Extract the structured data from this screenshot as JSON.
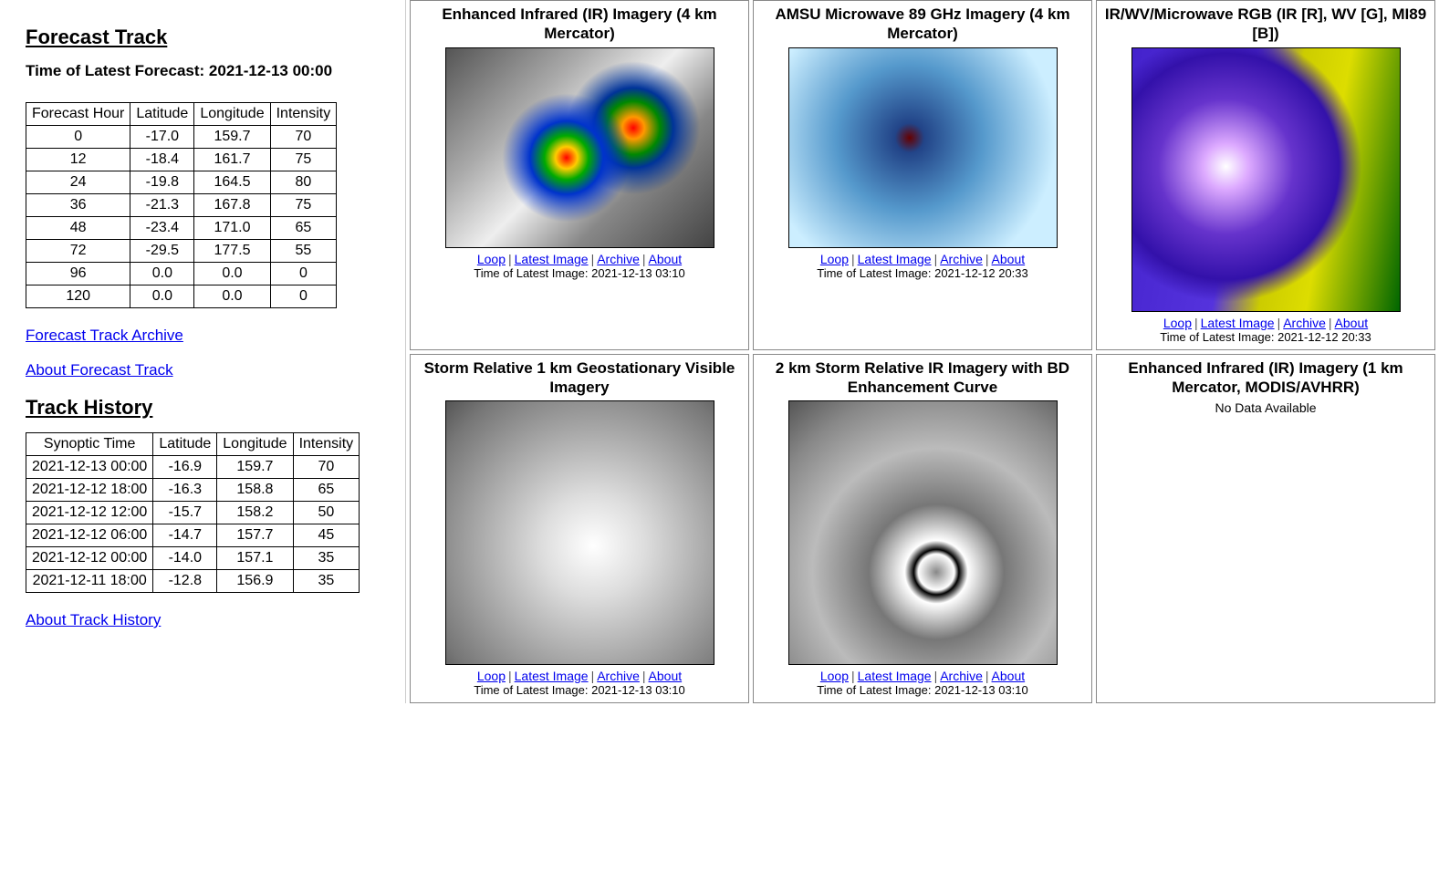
{
  "forecast": {
    "heading": "Forecast Track",
    "latest_label": "Time of Latest Forecast: 2021-12-13 00:00",
    "columns": [
      "Forecast Hour",
      "Latitude",
      "Longitude",
      "Intensity"
    ],
    "rows": [
      [
        "0",
        "-17.0",
        "159.7",
        "70"
      ],
      [
        "12",
        "-18.4",
        "161.7",
        "75"
      ],
      [
        "24",
        "-19.8",
        "164.5",
        "80"
      ],
      [
        "36",
        "-21.3",
        "167.8",
        "75"
      ],
      [
        "48",
        "-23.4",
        "171.0",
        "65"
      ],
      [
        "72",
        "-29.5",
        "177.5",
        "55"
      ],
      [
        "96",
        "0.0",
        "0.0",
        "0"
      ],
      [
        "120",
        "0.0",
        "0.0",
        "0"
      ]
    ],
    "archive_link": "Forecast Track Archive",
    "about_link": "About Forecast Track"
  },
  "history": {
    "heading": "Track History",
    "columns": [
      "Synoptic Time",
      "Latitude",
      "Longitude",
      "Intensity"
    ],
    "rows": [
      [
        "2021-12-13 00:00",
        "-16.9",
        "159.7",
        "70"
      ],
      [
        "2021-12-12 18:00",
        "-16.3",
        "158.8",
        "65"
      ],
      [
        "2021-12-12 12:00",
        "-15.7",
        "158.2",
        "50"
      ],
      [
        "2021-12-12 06:00",
        "-14.7",
        "157.7",
        "45"
      ],
      [
        "2021-12-12 00:00",
        "-14.0",
        "157.1",
        "35"
      ],
      [
        "2021-12-11 18:00",
        "-12.8",
        "156.9",
        "35"
      ]
    ],
    "about_link": "About Track History"
  },
  "link_labels": {
    "loop": "Loop",
    "latest": "Latest Image",
    "archive": "Archive",
    "about": "About"
  },
  "panels": [
    {
      "title": "Enhanced Infrared (IR) Imagery (4 km Mercator)",
      "img_class": "ir-enh",
      "time": "Time of Latest Image: 2021-12-13 03:10",
      "has_links": true
    },
    {
      "title": "AMSU Microwave 89 GHz Imagery (4 km Mercator)",
      "img_class": "amsu",
      "time": "Time of Latest Image: 2021-12-12 20:33",
      "has_links": true
    },
    {
      "title": "IR/WV/Microwave RGB (IR [R], WV [G], MI89 [B])",
      "img_class": "rgb-wv",
      "tall": true,
      "time": "Time of Latest Image: 2021-12-12 20:33",
      "has_links": true
    },
    {
      "title": "Storm Relative 1 km Geostationary Visible Imagery",
      "img_class": "visible",
      "big": true,
      "time": "Time of Latest Image: 2021-12-13 03:10",
      "has_links": true
    },
    {
      "title": "2 km Storm Relative IR Imagery with BD Enhancement Curve",
      "img_class": "bd-curve",
      "big": true,
      "time": "Time of Latest Image: 2021-12-13 03:10",
      "has_links": true
    },
    {
      "title": "Enhanced Infrared (IR) Imagery (1 km Mercator, MODIS/AVHRR)",
      "no_data": "No Data Available",
      "has_links": false
    }
  ]
}
